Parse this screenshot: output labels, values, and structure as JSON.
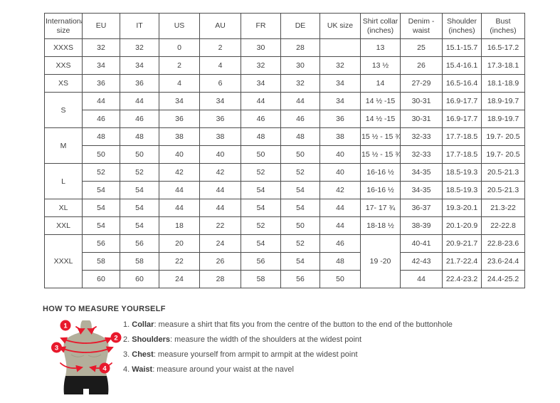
{
  "table": {
    "columns": [
      "International size",
      "EU",
      "IT",
      "US",
      "AU",
      "FR",
      "DE",
      "UK size",
      "Shirt collar (inches)",
      "Denim - waist",
      "Shoulder (inches)",
      "Bust (inches)"
    ],
    "rows": [
      [
        "XXXS",
        "32",
        "32",
        "0",
        "2",
        "30",
        "28",
        "",
        "13",
        "25",
        "15.1-15.7",
        "16.5-17.2"
      ],
      [
        "XXS",
        "34",
        "34",
        "2",
        "4",
        "32",
        "30",
        "32",
        "13 ½",
        "26",
        "15.4-16.1",
        "17.3-18.1"
      ],
      [
        "XS",
        "36",
        "36",
        "4",
        "6",
        "34",
        "32",
        "34",
        "14",
        "27-29",
        "16.5-16.4",
        "18.1-18.9"
      ],
      [
        {
          "t": "S",
          "rs": 2
        },
        "44",
        "44",
        "34",
        "34",
        "44",
        "44",
        "34",
        "14 ½ -15",
        "30-31",
        "16.9-17.7",
        "18.9-19.7"
      ],
      [
        "46",
        "46",
        "36",
        "36",
        "46",
        "46",
        "36",
        "14 ½ -15",
        "30-31",
        "16.9-17.7",
        "18.9-19.7"
      ],
      [
        {
          "t": "M",
          "rs": 2
        },
        "48",
        "48",
        "38",
        "38",
        "48",
        "48",
        "38",
        "15 ½ - 15 ¾",
        "32-33",
        "17.7-18.5",
        "19.7- 20.5"
      ],
      [
        "50",
        "50",
        "40",
        "40",
        "50",
        "50",
        "40",
        "15 ½ - 15 ¾",
        "32-33",
        "17.7-18.5",
        "19.7- 20.5"
      ],
      [
        {
          "t": "L",
          "rs": 2
        },
        "52",
        "52",
        "42",
        "42",
        "52",
        "52",
        "40",
        "16-16 ½",
        "34-35",
        "18.5-19.3",
        "20.5-21.3"
      ],
      [
        "54",
        "54",
        "44",
        "44",
        "54",
        "54",
        "42",
        "16-16 ½",
        "34-35",
        "18.5-19.3",
        "20.5-21.3"
      ],
      [
        "XL",
        "54",
        "54",
        "44",
        "44",
        "54",
        "54",
        "44",
        "17- 17 ¾",
        "36-37",
        "19.3-20.1",
        "21.3-22"
      ],
      [
        "XXL",
        "54",
        "54",
        "18",
        "22",
        "52",
        "50",
        "44",
        "18-18 ½",
        "38-39",
        "20.1-20.9",
        "22-22.8"
      ],
      [
        {
          "t": "XXXL",
          "rs": 3
        },
        "56",
        "56",
        "20",
        "24",
        "54",
        "52",
        "46",
        {
          "t": "19 -20",
          "rs": 3
        },
        "40-41",
        "20.9-21.7",
        "22.8-23.6"
      ],
      [
        "58",
        "58",
        "22",
        "26",
        "56",
        "54",
        "48",
        "42-43",
        "21.7-22.4",
        "23.6-24.4"
      ],
      [
        "60",
        "60",
        "24",
        "28",
        "58",
        "56",
        "50",
        "44",
        "22.4-23.2",
        "24.4-25.2"
      ]
    ]
  },
  "how_to_measure": {
    "title": "HOW TO MEASURE YOURSELF",
    "steps": [
      {
        "num": "1.",
        "label": "Collar",
        "text": ": measure a shirt that fits you from the centre of the button to the end of the buttonhole"
      },
      {
        "num": "2.",
        "label": "Shoulders",
        "text": ": measure the width of the shoulders at the widest point"
      },
      {
        "num": "3.",
        "label": "Chest",
        "text": ": measure yourself from armpit to armpit at the widest point"
      },
      {
        "num": "4.",
        "label": "Waist",
        "text": ": measure around your waist at the navel"
      }
    ]
  },
  "figure": {
    "badges": [
      "1",
      "2",
      "3",
      "4"
    ]
  },
  "colors": {
    "accent_red": "#e8192c",
    "mannequin_body": "#b3af9b",
    "mannequin_shading": "#9e9b87",
    "mannequin_shorts": "#1a1a1a",
    "table_border": "#4d4d4d",
    "text": "#3e3e3e"
  }
}
